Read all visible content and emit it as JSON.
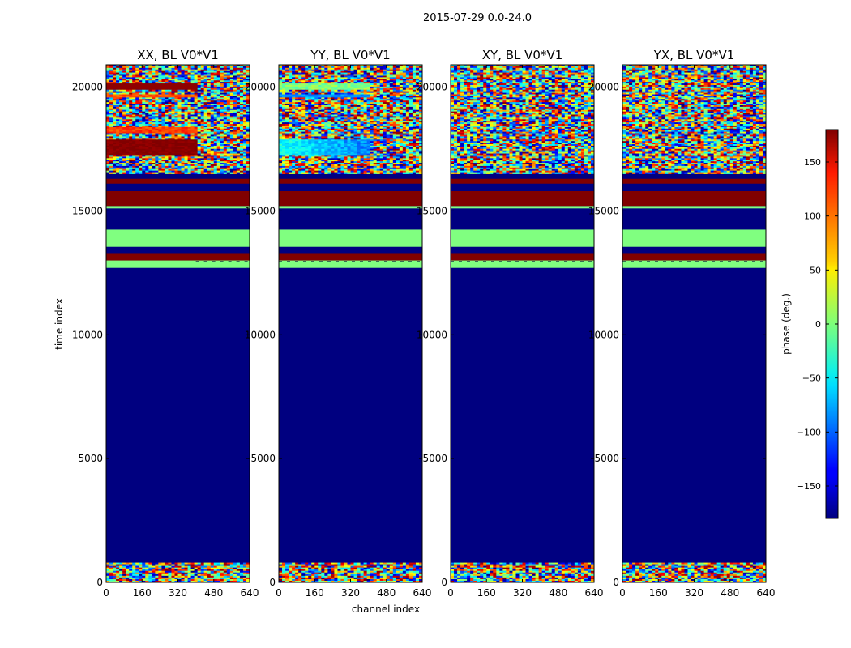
{
  "chart_data": {
    "type": "heatmap",
    "suptitle": "2015-07-29 0.0-24.0",
    "xlabel": "channel index",
    "ylabel": "time index",
    "xlim": [
      0,
      640
    ],
    "ylim": [
      0,
      20900
    ],
    "x_ticks": [
      0,
      160,
      320,
      480,
      640
    ],
    "y_ticks": [
      0,
      5000,
      10000,
      15000,
      20000
    ],
    "panels": [
      {
        "title": "XX, BL V0*V1",
        "pol": "XX"
      },
      {
        "title": "YY, BL V0*V1",
        "pol": "YY"
      },
      {
        "title": "XY, BL V0*V1",
        "pol": "XY"
      },
      {
        "title": "YX, BL V0*V1",
        "pol": "YX"
      }
    ],
    "time_bands": [
      {
        "from": 0,
        "to": 800,
        "kind": "noise"
      },
      {
        "from": 800,
        "to": 12700,
        "phase": -180
      },
      {
        "from": 12700,
        "to": 13000,
        "phase": 0
      },
      {
        "from": 13000,
        "to": 13300,
        "phase": 180
      },
      {
        "from": 13300,
        "to": 13550,
        "phase": -180
      },
      {
        "from": 13550,
        "to": 14250,
        "phase": 0
      },
      {
        "from": 14250,
        "to": 15100,
        "phase": -180
      },
      {
        "from": 15100,
        "to": 15200,
        "phase": 0
      },
      {
        "from": 15200,
        "to": 15800,
        "phase": 180
      },
      {
        "from": 15800,
        "to": 16100,
        "phase": -180
      },
      {
        "from": 16100,
        "to": 16300,
        "phase": 180
      },
      {
        "from": 16300,
        "to": 16500,
        "phase": -180
      },
      {
        "from": 16500,
        "to": 20900,
        "kind": "noise"
      }
    ],
    "colorbar": {
      "label": "phase (deg.)",
      "range": [
        -180,
        180
      ],
      "ticks": [
        -150,
        -100,
        -50,
        0,
        50,
        100,
        150
      ],
      "colormap": "jet"
    }
  }
}
